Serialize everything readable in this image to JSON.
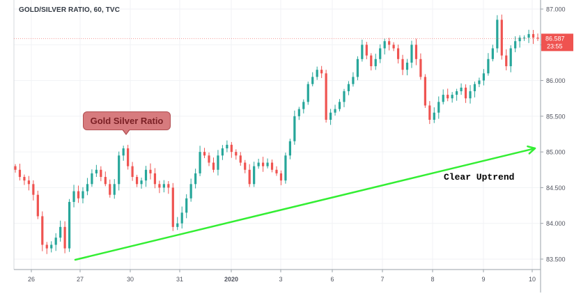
{
  "header": {
    "title": "GOLD/SILVER RATIO, 60, TVC"
  },
  "annotations": {
    "callout_label": "Gold Silver Ratio",
    "trend_label": "Clear Uptrend"
  },
  "colors": {
    "up_candle": "#26a69a",
    "down_candle": "#ef5350",
    "trendline": "#33ee33",
    "price_tag": "#ef5350"
  },
  "chart_data": {
    "type": "candlestick",
    "title": "GOLD/SILVER RATIO, 60, TVC",
    "xlabel": "",
    "ylabel": "",
    "ylim": [
      83.45,
      87.1
    ],
    "y_ticks": [
      "87.000",
      "86.500",
      "86.000",
      "85.500",
      "85.000",
      "84.500",
      "84.000",
      "83.500"
    ],
    "y_tick_values": [
      87.0,
      86.5,
      86.0,
      85.5,
      85.0,
      84.5,
      84.0,
      83.5
    ],
    "x_ticks": [
      "26",
      "27",
      "30",
      "31",
      "2020",
      "3",
      "6",
      "7",
      "8",
      "9",
      "10"
    ],
    "last_price": "86.587",
    "countdown": "23:55",
    "grid": true,
    "series": [
      {
        "values": [
          84.75,
          84.65,
          84.6,
          84.55,
          84.4,
          84.1,
          83.7,
          83.65,
          83.7,
          83.8,
          83.95,
          83.65,
          84.3,
          84.45,
          84.35,
          84.45,
          84.55,
          84.7,
          84.75,
          84.65,
          84.55,
          84.4,
          84.55,
          84.95,
          85.05,
          84.8,
          84.65,
          84.55,
          84.6,
          84.75,
          84.7,
          84.55,
          84.5,
          84.55,
          84.5,
          83.95,
          84.0,
          84.15,
          84.35,
          84.55,
          84.7,
          85.0,
          84.95,
          84.85,
          84.75,
          84.95,
          85.05,
          85.1,
          85.0,
          84.95,
          84.85,
          84.75,
          84.55,
          84.8,
          84.85,
          84.8,
          84.85,
          84.75,
          84.7,
          84.6,
          84.95,
          85.15,
          85.5,
          85.6,
          85.7,
          85.95,
          86.05,
          86.15,
          86.1,
          85.45,
          85.55,
          85.6,
          85.7,
          85.85,
          85.95,
          86.05,
          86.3,
          86.5,
          86.35,
          86.2,
          86.3,
          86.45,
          86.55,
          86.5,
          86.45,
          86.3,
          86.15,
          86.25,
          86.5,
          86.3,
          86.05,
          85.65,
          85.45,
          85.55,
          85.7,
          85.8,
          85.75,
          85.8,
          85.85,
          85.9,
          85.75,
          85.85,
          85.95,
          86.0,
          86.1,
          86.3,
          86.45,
          86.85,
          86.35,
          86.2,
          86.45,
          86.55,
          86.6,
          86.6,
          86.65,
          86.6,
          86.59
        ]
      }
    ],
    "trendline": {
      "from": [
        0.6,
        83.5
      ],
      "to": [
        0.948,
        85.05
      ]
    }
  }
}
